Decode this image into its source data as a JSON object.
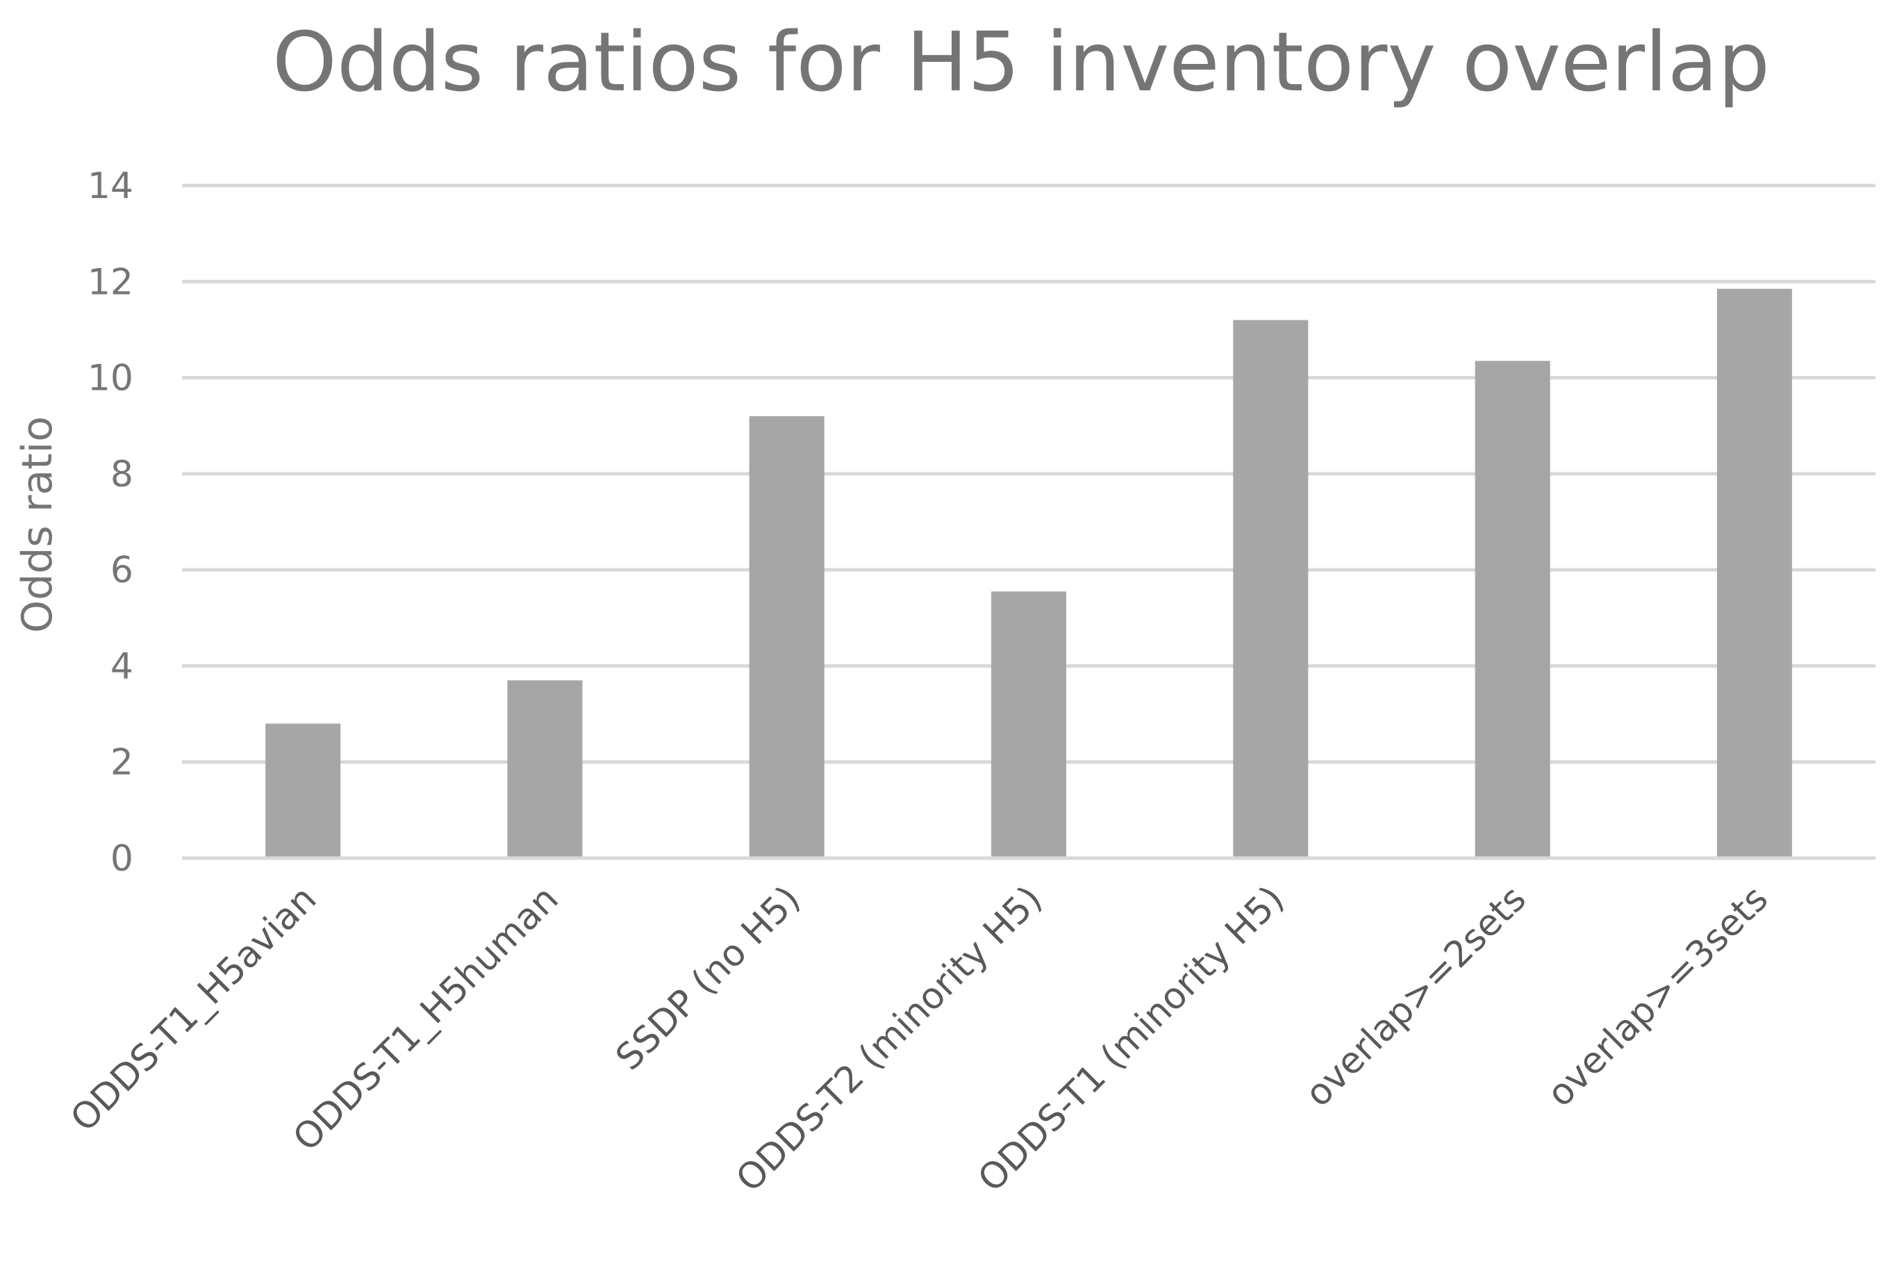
{
  "chart_data": {
    "type": "bar",
    "title": "Odds ratios for H5 inventory overlap",
    "xlabel": "",
    "ylabel": "Odds ratio",
    "categories": [
      "ODDS-T1_H5avian",
      "ODDS-T1_H5human",
      "SSDP (no H5)",
      "ODDS-T2 (minority H5)",
      "ODDS-T1 (minority H5)",
      "overlap>=2sets",
      "overlap>=3sets"
    ],
    "values": [
      2.8,
      3.7,
      9.2,
      5.55,
      11.2,
      10.35,
      11.85
    ],
    "ylim": [
      0,
      14
    ],
    "yticks": [
      "0",
      "2",
      "4",
      "6",
      "8",
      "10",
      "12",
      "14"
    ],
    "grid": true,
    "legend": "none",
    "bar_color": "#a6a6a6",
    "grid_color": "#d9d9d9",
    "text_color": "#757575"
  }
}
